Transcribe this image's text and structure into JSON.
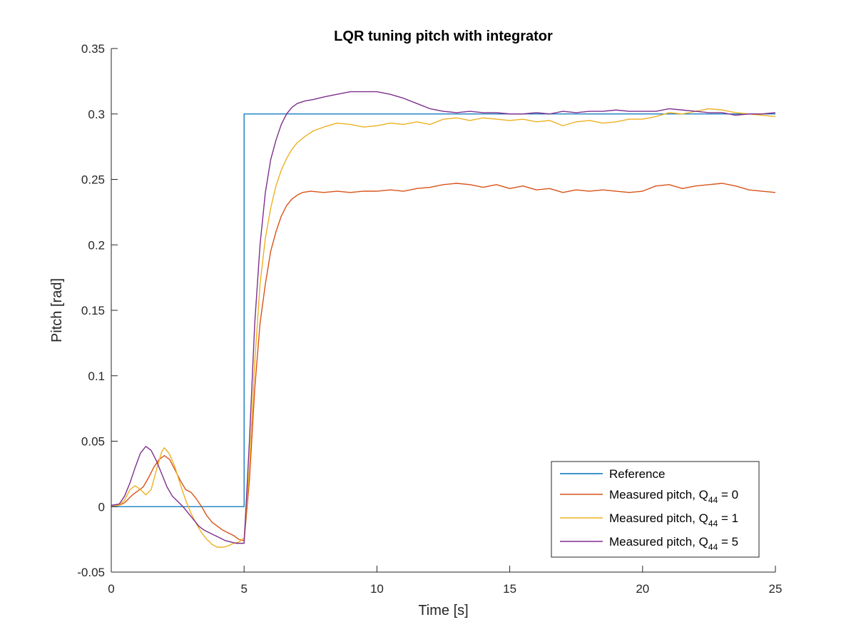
{
  "chart_data": {
    "type": "line",
    "title": "LQR tuning pitch with integrator",
    "xlabel": "Time [s]",
    "ylabel": "Pitch [rad]",
    "xlim": [
      0,
      25
    ],
    "ylim": [
      -0.05,
      0.35
    ],
    "xticks": [
      0,
      5,
      10,
      15,
      20,
      25
    ],
    "xtick_labels": [
      "0",
      "5",
      "10",
      "15",
      "20",
      "25"
    ],
    "yticks": [
      -0.05,
      0,
      0.05,
      0.1,
      0.15,
      0.2,
      0.25,
      0.3,
      0.35
    ],
    "ytick_labels": [
      "-0.05",
      "0",
      "0.05",
      "0.1",
      "0.15",
      "0.2",
      "0.25",
      "0.3",
      "0.35"
    ],
    "grid": false,
    "legend_position": "bottom-right",
    "series": [
      {
        "name": "Reference",
        "legend_main": "Reference",
        "legend_sub": "",
        "legend_tail": "",
        "color": "#0072BD",
        "x": [
          0,
          5,
          5,
          25
        ],
        "y": [
          0,
          0,
          0.3,
          0.3
        ]
      },
      {
        "name": "Measured pitch, Q44 = 0",
        "legend_main": "Measured pitch, Q",
        "legend_sub": "44",
        "legend_tail": " = 0",
        "color": "#D95319",
        "x": [
          0,
          0.3,
          0.5,
          0.8,
          1.0,
          1.2,
          1.4,
          1.6,
          1.8,
          2.0,
          2.2,
          2.4,
          2.6,
          2.8,
          3.0,
          3.2,
          3.4,
          3.6,
          3.8,
          4.0,
          4.2,
          4.4,
          4.6,
          4.8,
          5.0,
          5.2,
          5.4,
          5.6,
          5.8,
          6.0,
          6.2,
          6.4,
          6.6,
          6.8,
          7.0,
          7.2,
          7.5,
          8.0,
          8.5,
          9.0,
          9.5,
          10.0,
          10.5,
          11.0,
          11.5,
          12.0,
          12.5,
          13.0,
          13.5,
          14.0,
          14.5,
          15.0,
          15.5,
          16.0,
          16.5,
          17.0,
          17.5,
          18.0,
          18.5,
          19.0,
          19.5,
          20.0,
          20.5,
          21.0,
          21.5,
          22.0,
          22.5,
          23.0,
          23.5,
          24.0,
          24.5,
          25.0
        ],
        "y": [
          0.001,
          0.001,
          0.003,
          0.009,
          0.012,
          0.015,
          0.022,
          0.03,
          0.036,
          0.039,
          0.036,
          0.028,
          0.02,
          0.013,
          0.011,
          0.006,
          0.0,
          -0.007,
          -0.012,
          -0.015,
          -0.018,
          -0.02,
          -0.022,
          -0.025,
          -0.026,
          0.02,
          0.09,
          0.14,
          0.17,
          0.195,
          0.21,
          0.222,
          0.23,
          0.235,
          0.238,
          0.24,
          0.241,
          0.24,
          0.241,
          0.24,
          0.241,
          0.241,
          0.242,
          0.241,
          0.243,
          0.244,
          0.246,
          0.247,
          0.246,
          0.244,
          0.246,
          0.243,
          0.245,
          0.242,
          0.243,
          0.24,
          0.242,
          0.241,
          0.242,
          0.241,
          0.24,
          0.241,
          0.245,
          0.246,
          0.243,
          0.245,
          0.246,
          0.247,
          0.245,
          0.242,
          0.241,
          0.24
        ]
      },
      {
        "name": "Measured pitch, Q44 = 1",
        "legend_main": "Measured pitch, Q",
        "legend_sub": "44",
        "legend_tail": " = 1",
        "color": "#EDB120",
        "x": [
          0,
          0.3,
          0.5,
          0.7,
          0.9,
          1.1,
          1.3,
          1.5,
          1.7,
          1.9,
          2.0,
          2.2,
          2.4,
          2.6,
          2.8,
          3.0,
          3.2,
          3.4,
          3.6,
          3.8,
          4.0,
          4.2,
          4.4,
          4.6,
          4.8,
          5.0,
          5.2,
          5.4,
          5.6,
          5.8,
          6.0,
          6.2,
          6.4,
          6.6,
          6.8,
          7.0,
          7.3,
          7.6,
          8.0,
          8.5,
          9.0,
          9.5,
          10.0,
          10.5,
          11.0,
          11.5,
          12.0,
          12.5,
          13.0,
          13.5,
          14.0,
          14.5,
          15.0,
          15.5,
          16.0,
          16.5,
          17.0,
          17.5,
          18.0,
          18.5,
          19.0,
          19.5,
          20.0,
          20.5,
          21.0,
          21.5,
          22.0,
          22.5,
          23.0,
          23.5,
          24.0,
          24.5,
          25.0
        ],
        "y": [
          0.001,
          0.001,
          0.005,
          0.013,
          0.016,
          0.013,
          0.009,
          0.013,
          0.028,
          0.042,
          0.045,
          0.04,
          0.03,
          0.017,
          0.005,
          -0.005,
          -0.013,
          -0.02,
          -0.025,
          -0.029,
          -0.031,
          -0.031,
          -0.03,
          -0.028,
          -0.027,
          -0.024,
          0.03,
          0.11,
          0.17,
          0.205,
          0.228,
          0.245,
          0.257,
          0.266,
          0.273,
          0.278,
          0.283,
          0.287,
          0.29,
          0.293,
          0.292,
          0.29,
          0.291,
          0.293,
          0.292,
          0.294,
          0.292,
          0.296,
          0.297,
          0.295,
          0.297,
          0.296,
          0.295,
          0.296,
          0.294,
          0.295,
          0.291,
          0.294,
          0.295,
          0.293,
          0.294,
          0.296,
          0.296,
          0.298,
          0.301,
          0.3,
          0.302,
          0.304,
          0.303,
          0.301,
          0.3,
          0.299,
          0.298
        ]
      },
      {
        "name": "Measured pitch, Q44 = 5",
        "legend_main": "Measured pitch, Q",
        "legend_sub": "44",
        "legend_tail": " = 5",
        "color": "#7E2F8E",
        "x": [
          0,
          0.3,
          0.5,
          0.7,
          0.9,
          1.1,
          1.3,
          1.5,
          1.7,
          1.9,
          2.1,
          2.3,
          2.5,
          2.7,
          2.9,
          3.1,
          3.3,
          3.5,
          3.7,
          3.9,
          4.1,
          4.3,
          4.5,
          4.7,
          4.9,
          5.0,
          5.2,
          5.4,
          5.6,
          5.8,
          6.0,
          6.2,
          6.4,
          6.6,
          6.8,
          7.0,
          7.3,
          7.6,
          8.0,
          8.5,
          9.0,
          9.5,
          10.0,
          10.5,
          11.0,
          11.5,
          12.0,
          12.5,
          13.0,
          13.5,
          14.0,
          14.5,
          15.0,
          15.5,
          16.0,
          16.5,
          17.0,
          17.5,
          18.0,
          18.5,
          19.0,
          19.5,
          20.0,
          20.5,
          21.0,
          21.5,
          22.0,
          22.5,
          23.0,
          23.5,
          24.0,
          24.5,
          25.0
        ],
        "y": [
          0.001,
          0.002,
          0.008,
          0.018,
          0.03,
          0.041,
          0.046,
          0.043,
          0.035,
          0.025,
          0.015,
          0.008,
          0.004,
          0.0,
          -0.005,
          -0.01,
          -0.015,
          -0.018,
          -0.02,
          -0.022,
          -0.024,
          -0.026,
          -0.027,
          -0.028,
          -0.028,
          -0.028,
          0.05,
          0.14,
          0.2,
          0.24,
          0.265,
          0.28,
          0.292,
          0.3,
          0.305,
          0.308,
          0.31,
          0.311,
          0.313,
          0.315,
          0.317,
          0.317,
          0.317,
          0.315,
          0.312,
          0.308,
          0.304,
          0.302,
          0.301,
          0.302,
          0.301,
          0.301,
          0.3,
          0.3,
          0.301,
          0.3,
          0.302,
          0.301,
          0.302,
          0.302,
          0.303,
          0.302,
          0.302,
          0.302,
          0.304,
          0.303,
          0.302,
          0.301,
          0.301,
          0.299,
          0.3,
          0.3,
          0.301
        ]
      }
    ]
  }
}
